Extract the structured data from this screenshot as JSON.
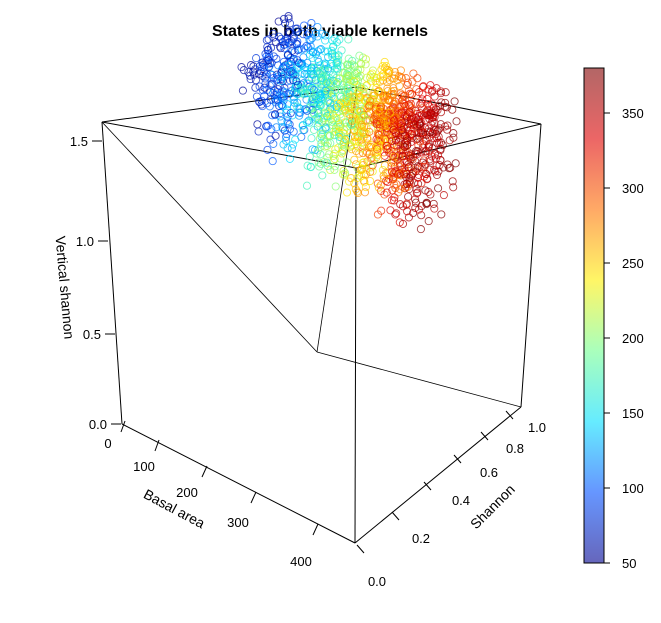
{
  "chart_data": {
    "type": "scatter",
    "title": "States in both viable kernels",
    "axes": {
      "x": {
        "label": "Basal area",
        "ticks": [
          "0",
          "100",
          "200",
          "300",
          "400"
        ]
      },
      "y": {
        "label": "Shannon",
        "ticks": [
          "0.0",
          "0.2",
          "0.4",
          "0.6",
          "0.8",
          "1.0"
        ]
      },
      "z": {
        "label": "Vertical shannon",
        "ticks": [
          "0.0",
          "0.5",
          "1.0",
          "1.5"
        ]
      }
    },
    "colorbar": {
      "range": [
        50,
        380
      ],
      "ticks": [
        "50",
        "100",
        "150",
        "200",
        "250",
        "300",
        "350"
      ],
      "colors": [
        "#00008F",
        "#0050FF",
        "#00DFFF",
        "#70FF8F",
        "#FFEF00",
        "#FF7000",
        "#DF0000",
        "#800000"
      ]
    },
    "cloud": {
      "basal_area_range": [
        50,
        380
      ],
      "shannon_range": [
        0.65,
        0.95
      ],
      "vertical_shannon_range": [
        1.0,
        1.6
      ],
      "marker": "open-circle"
    }
  }
}
